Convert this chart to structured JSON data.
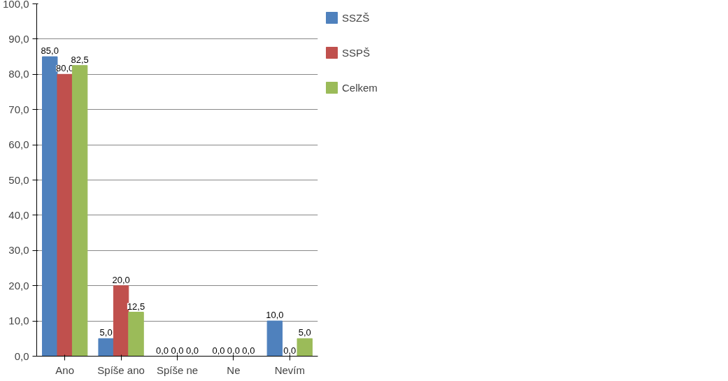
{
  "chart_data": {
    "type": "bar",
    "categories": [
      "Ano",
      "Spíše ano",
      "Spíše ne",
      "Ne",
      "Nevím"
    ],
    "series": [
      {
        "name": "SSZŠ",
        "color": "#4f81bd",
        "values": [
          85.0,
          5.0,
          0.0,
          0.0,
          10.0
        ],
        "value_labels": [
          "85,0",
          "5,0",
          "0,0",
          "0,0",
          "10,0"
        ]
      },
      {
        "name": "SSPŠ",
        "color": "#c0504d",
        "values": [
          80.0,
          20.0,
          0.0,
          0.0,
          0.0
        ],
        "value_labels": [
          "80,0",
          "20,0",
          "0,0",
          "0,0",
          "0,0"
        ]
      },
      {
        "name": "Celkem",
        "color": "#9bbb59",
        "values": [
          82.5,
          12.5,
          0.0,
          0.0,
          5.0
        ],
        "value_labels": [
          "82,5",
          "12,5",
          "0,0",
          "0,0",
          "5,0"
        ]
      }
    ],
    "ylim": [
      0,
      100
    ],
    "yticks": [
      {
        "value": 0,
        "label": "0,0"
      },
      {
        "value": 10,
        "label": "10,0"
      },
      {
        "value": 20,
        "label": "20,0"
      },
      {
        "value": 30,
        "label": "30,0"
      },
      {
        "value": 40,
        "label": "40,0"
      },
      {
        "value": 50,
        "label": "50,0"
      },
      {
        "value": 60,
        "label": "60,0"
      },
      {
        "value": 70,
        "label": "70,0"
      },
      {
        "value": 80,
        "label": "80,0"
      },
      {
        "value": 90,
        "label": "90,0"
      },
      {
        "value": 100,
        "label": "100,0"
      }
    ],
    "grid": "y",
    "legend": "right"
  }
}
